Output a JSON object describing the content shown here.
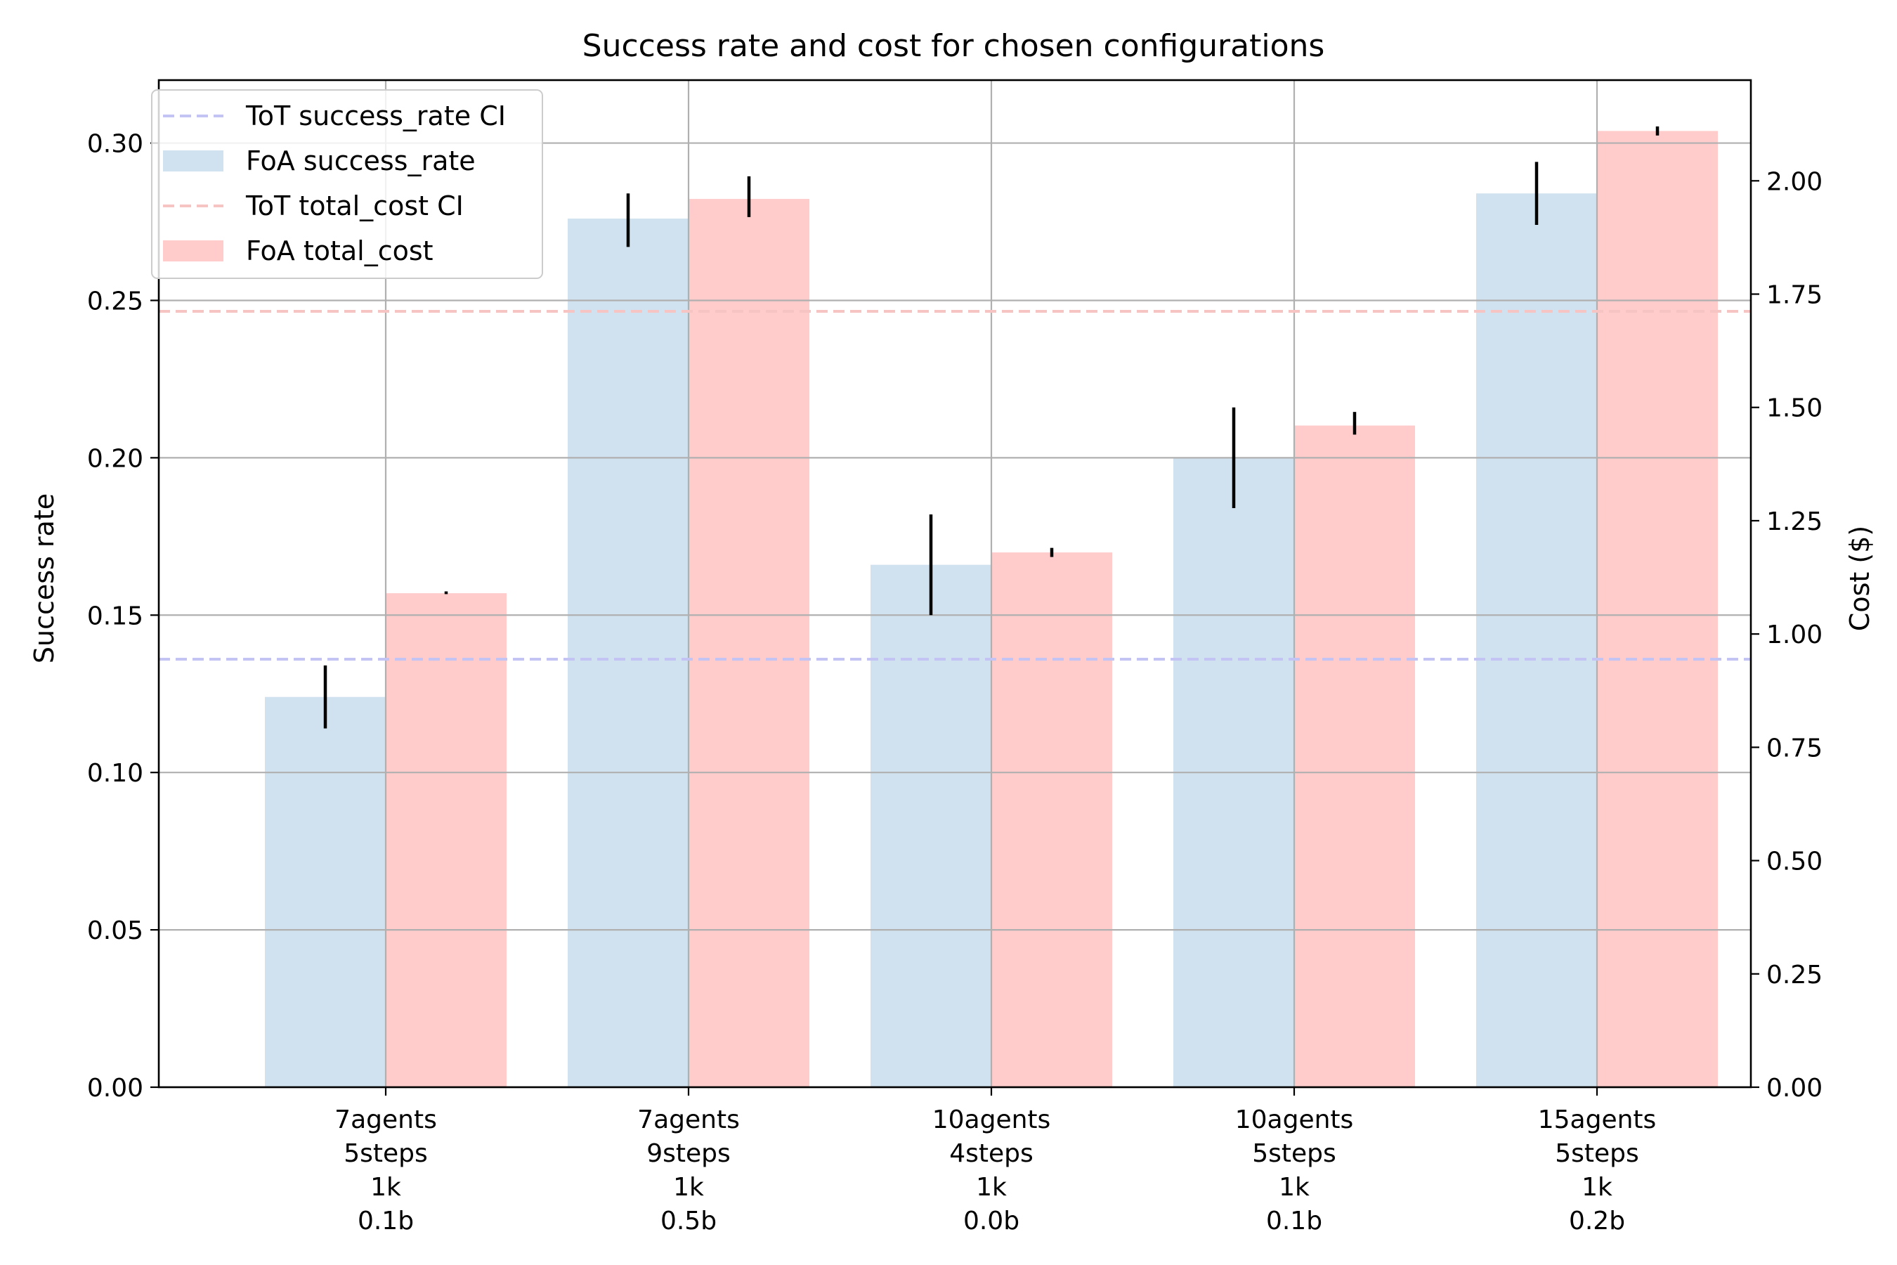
{
  "chart_data": {
    "type": "bar",
    "title": "Success rate and cost for chosen configurations",
    "ylabel_left": "Success rate",
    "ylabel_right": "Cost ($)",
    "categories": [
      [
        "7agents",
        "5steps",
        "1k",
        "0.1b"
      ],
      [
        "7agents",
        "9steps",
        "1k",
        "0.5b"
      ],
      [
        "10agents",
        "4steps",
        "1k",
        "0.0b"
      ],
      [
        "10agents",
        "5steps",
        "1k",
        "0.1b"
      ],
      [
        "15agents",
        "5steps",
        "1k",
        "0.2b"
      ]
    ],
    "y_left": {
      "min": 0,
      "max": 0.32,
      "ticks": [
        "0.00",
        "0.05",
        "0.10",
        "0.15",
        "0.20",
        "0.25",
        "0.30"
      ]
    },
    "y_right": {
      "min": 0,
      "max": 2.2222,
      "ticks": [
        "0.00",
        "0.25",
        "0.50",
        "0.75",
        "1.00",
        "1.25",
        "1.50",
        "1.75",
        "2.00"
      ]
    },
    "series": [
      {
        "name": "FoA success_rate",
        "axis": "left",
        "color": "#d0e2ef",
        "values": [
          0.124,
          0.276,
          0.166,
          0.2,
          0.284
        ],
        "err_low": [
          0.114,
          0.267,
          0.15,
          0.184,
          0.274
        ],
        "err_high": [
          0.134,
          0.284,
          0.182,
          0.216,
          0.294
        ]
      },
      {
        "name": "FoA total_cost",
        "axis": "right",
        "color": "#ffcbcb",
        "values": [
          1.09,
          1.96,
          1.18,
          1.46,
          2.11
        ],
        "err_low": [
          1.088,
          1.92,
          1.17,
          1.44,
          2.1
        ],
        "err_high": [
          1.094,
          2.01,
          1.19,
          1.49,
          2.12
        ]
      }
    ],
    "reference_lines": [
      {
        "name": "ToT success_rate CI",
        "axis": "left",
        "value": 0.136,
        "color": "#c4c4f4"
      },
      {
        "name": "ToT total_cost CI",
        "axis": "right",
        "value": 1.712,
        "color": "#f7c4c4"
      }
    ],
    "grid": true,
    "legend_position": "top-left",
    "legend_order": [
      {
        "label": "ToT success_rate CI",
        "kind": "line",
        "color": "#c4c4f4"
      },
      {
        "label": "FoA success_rate",
        "kind": "patch",
        "color": "#d0e2ef"
      },
      {
        "label": "ToT total_cost CI",
        "kind": "line",
        "color": "#f7c4c4"
      },
      {
        "label": "FoA total_cost",
        "kind": "patch",
        "color": "#ffcbcb"
      }
    ]
  }
}
